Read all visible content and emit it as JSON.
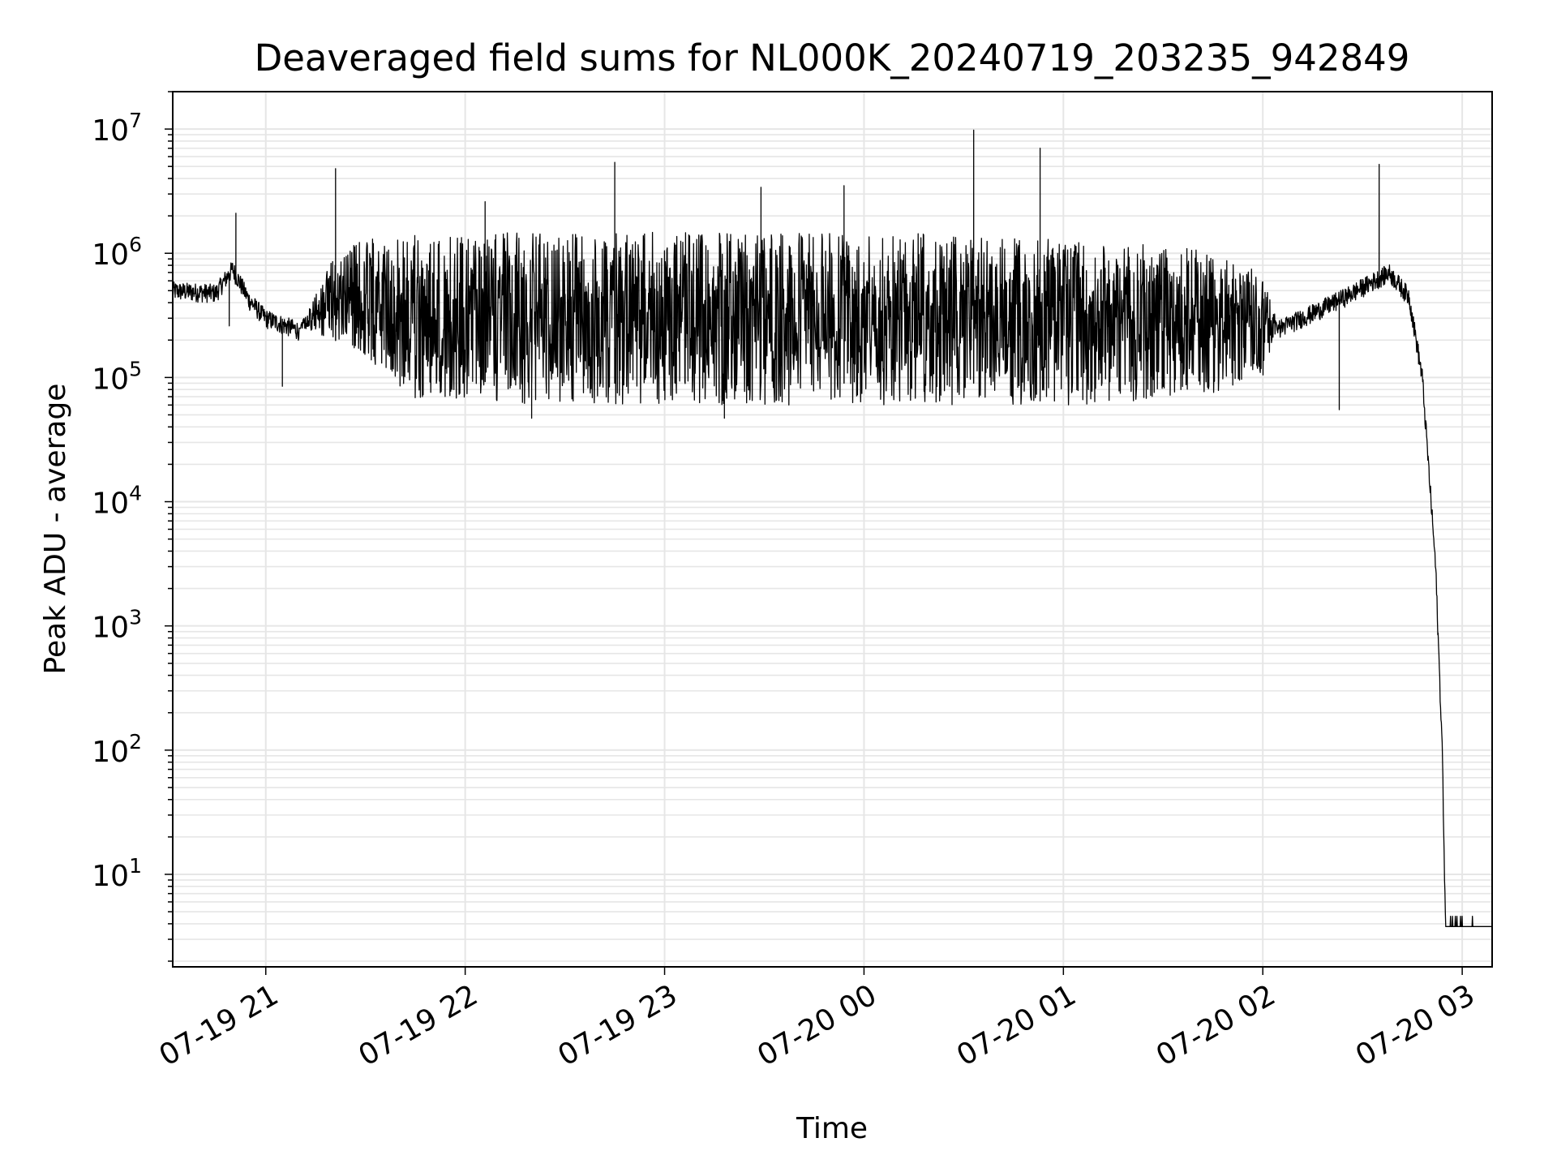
{
  "chart_data": {
    "type": "line",
    "title": "Deaveraged field sums for NL000K_20240719_203235_942849",
    "xlabel": "Time",
    "ylabel": "Peak ADU - average",
    "yscale": "log",
    "ylim": [
      1.8,
      20000000
    ],
    "xlim": [
      "2024-07-19 20:32",
      "2024-07-20 03:09"
    ],
    "grid": true,
    "line_color": "#000000",
    "grid_color": "#e6e6e6",
    "x_ticks": [
      {
        "label": "07-19 21",
        "time": "2024-07-19 21:00"
      },
      {
        "label": "07-19 22",
        "time": "2024-07-19 22:00"
      },
      {
        "label": "07-19 23",
        "time": "2024-07-19 23:00"
      },
      {
        "label": "07-20 00",
        "time": "2024-07-20 00:00"
      },
      {
        "label": "07-20 01",
        "time": "2024-07-20 01:00"
      },
      {
        "label": "07-20 02",
        "time": "2024-07-20 02:00"
      },
      {
        "label": "07-20 03",
        "time": "2024-07-20 03:00"
      }
    ],
    "y_ticks": [
      {
        "base": "10",
        "exp": "1",
        "value": 10
      },
      {
        "base": "10",
        "exp": "2",
        "value": 100
      },
      {
        "base": "10",
        "exp": "3",
        "value": 1000
      },
      {
        "base": "10",
        "exp": "4",
        "value": 10000
      },
      {
        "base": "10",
        "exp": "5",
        "value": 100000
      },
      {
        "base": "10",
        "exp": "6",
        "value": 1000000
      },
      {
        "base": "10",
        "exp": "7",
        "value": 10000000
      }
    ],
    "series": [
      {
        "baseline": [
          [
            "2024-07-19 20:32",
            500000
          ],
          [
            "2024-07-19 20:45",
            480000
          ],
          [
            "2024-07-19 20:50",
            750000
          ],
          [
            "2024-07-19 20:55",
            420000
          ],
          [
            "2024-07-19 21:00",
            300000
          ],
          [
            "2024-07-19 21:10",
            240000
          ],
          [
            "2024-07-19 21:30",
            170000
          ],
          [
            "2024-07-19 21:45",
            95000
          ],
          [
            "2024-07-19 22:30",
            90000
          ],
          [
            "2024-07-20 00:00",
            90000
          ],
          [
            "2024-07-20 01:30",
            90000
          ],
          [
            "2024-07-20 01:55",
            90000
          ],
          [
            "2024-07-20 02:05",
            250000
          ],
          [
            "2024-07-20 02:15",
            330000
          ],
          [
            "2024-07-20 02:25",
            450000
          ],
          [
            "2024-07-20 02:38",
            700000
          ],
          [
            "2024-07-20 02:44",
            450000
          ],
          [
            "2024-07-20 02:48",
            100000
          ],
          [
            "2024-07-20 02:52",
            3000
          ],
          [
            "2024-07-20 02:54",
            100
          ],
          [
            "2024-07-20 02:55",
            3.8
          ],
          [
            "2024-07-20 03:09",
            3.8
          ]
        ],
        "oscillation_envelope": [
          [
            "2024-07-19 21:10",
            250000,
            250000
          ],
          [
            "2024-07-19 21:20",
            200000,
            900000
          ],
          [
            "2024-07-19 21:30",
            140000,
            1350000
          ],
          [
            "2024-07-19 21:45",
            65000,
            1400000
          ],
          [
            "2024-07-19 22:30",
            60000,
            1500000
          ],
          [
            "2024-07-20 00:00",
            60000,
            1500000
          ],
          [
            "2024-07-20 01:00",
            60000,
            1300000
          ],
          [
            "2024-07-20 01:40",
            65000,
            1100000
          ],
          [
            "2024-07-20 02:00",
            95000,
            700000
          ],
          [
            "2024-07-20 02:05",
            250000,
            250000
          ]
        ],
        "spikes": [
          [
            "2024-07-19 20:51",
            2100000
          ],
          [
            "2024-07-19 21:21",
            4800000
          ],
          [
            "2024-07-19 22:06",
            2600000
          ],
          [
            "2024-07-19 22:45",
            5400000
          ],
          [
            "2024-07-19 23:29",
            3400000
          ],
          [
            "2024-07-19 23:54",
            3500000
          ],
          [
            "2024-07-20 00:33",
            9800000
          ],
          [
            "2024-07-20 00:53",
            7000000
          ],
          [
            "2024-07-20 02:35",
            5200000
          ]
        ],
        "dips": [
          [
            "2024-07-19 20:49",
            260000
          ],
          [
            "2024-07-19 21:05",
            85000
          ],
          [
            "2024-07-19 22:20",
            47000
          ],
          [
            "2024-07-19 23:18",
            47000
          ],
          [
            "2024-07-20 02:23",
            55000
          ]
        ]
      }
    ]
  }
}
